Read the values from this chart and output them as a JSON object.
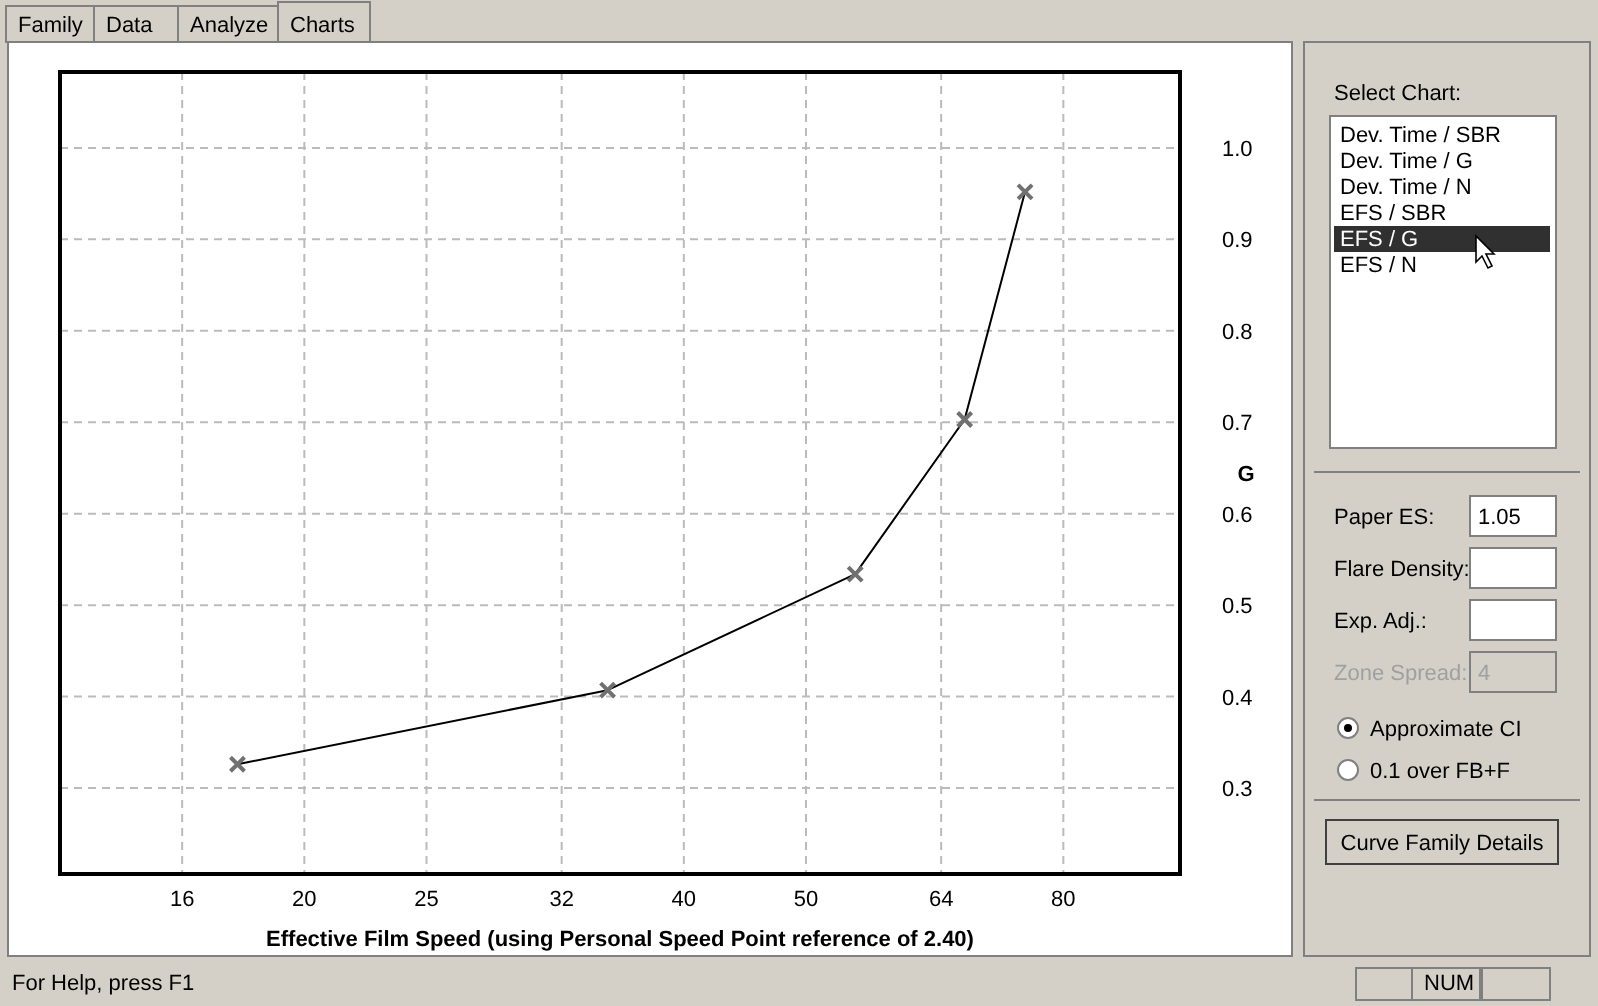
{
  "chart_data": [
    {
      "type": "line",
      "xlabel": "Effective Film Speed (using Personal Speed Point reference of 2.40)",
      "ylabel": "G",
      "log": "x",
      "x": [
        17.7,
        34.8,
        54.7,
        66.8,
        74.6
      ],
      "series": [
        {
          "color": "#000000",
          "values": [
            0.326,
            0.407,
            0.534,
            0.703,
            0.952
          ]
        }
      ],
      "xlim": [
        12.8,
        99
      ],
      "xticks": [
        16,
        20,
        25,
        32,
        40,
        50,
        64,
        80
      ],
      "ylim": [
        0.206,
        1.083
      ],
      "yticks": [
        0.3,
        0.4,
        0.5,
        0.6,
        0.7,
        0.8,
        0.9,
        {
          "value": 1,
          "label": "1.0"
        }
      ],
      "grid": true,
      "marker": "cross",
      "line_style": "solid"
    },
    {
      "type": "other",
      "annotations": [
        "Family",
        "Data",
        "Analyze",
        "Charts",
        "Select Chart:",
        "Dev. Time / SBR",
        "Dev. Time / G",
        "Dev. Time / N",
        "EFS / SBR",
        "EFS / G",
        "EFS / N",
        "Paper ES:",
        "1.05",
        "Flare Density:",
        "Exp. Adj.:",
        "Zone Spread:",
        "4",
        "Approximate CI",
        "0.1 over FB+F",
        "Curve Family Details",
        "For Help, press F1",
        "NUM"
      ]
    }
  ]
}
